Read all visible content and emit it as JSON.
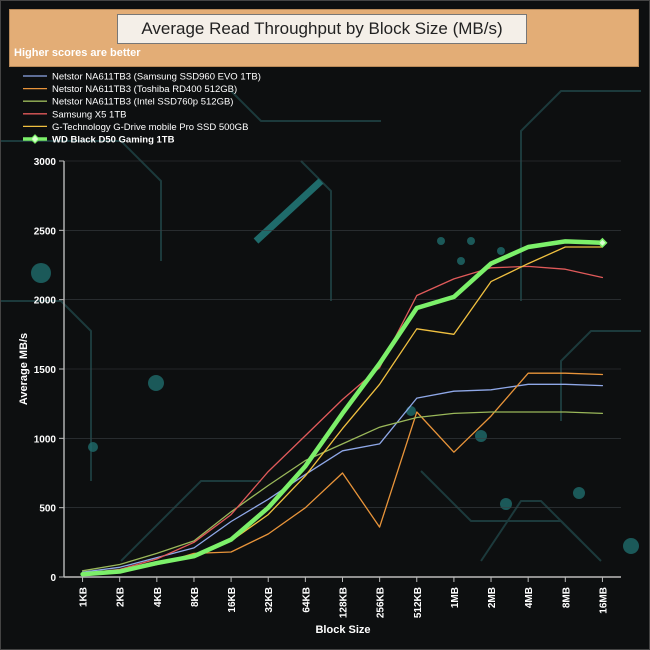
{
  "header": {
    "title": "Average Read Throughput by Block Size (MB/s)",
    "subtitle": "Higher scores are better"
  },
  "chart_data": {
    "type": "line",
    "title": "Average Read Throughput by Block Size (MB/s)",
    "subtitle": "Higher scores are better",
    "xlabel": "Block Size",
    "ylabel": "Average MB/s",
    "ylim": [
      0,
      3000
    ],
    "yticks": [
      0,
      500,
      1000,
      1500,
      2000,
      2500,
      3000
    ],
    "categories": [
      "1KB",
      "2KB",
      "4KB",
      "8KB",
      "16KB",
      "32KB",
      "64KB",
      "128KB",
      "256KB",
      "512KB",
      "1MB",
      "2MB",
      "4MB",
      "8MB",
      "16MB"
    ],
    "legend_position": "top-left",
    "series": [
      {
        "name": "Netstor NA611TB3 (Samsung SSD960 EVO 1TB)",
        "color": "#8fa8e8",
        "values": [
          35,
          70,
          140,
          210,
          400,
          560,
          740,
          910,
          960,
          1290,
          1340,
          1350,
          1390,
          1390,
          1380
        ]
      },
      {
        "name": "Netstor NA611TB3 (Toshiba RD400 512GB)",
        "color": "#e8943a",
        "values": [
          20,
          45,
          90,
          170,
          180,
          310,
          500,
          750,
          360,
          1190,
          900,
          1160,
          1470,
          1470,
          1460
        ]
      },
      {
        "name": "Netstor NA611TB3 (Intel SSD760p 512GB)",
        "color": "#9ab85a",
        "values": [
          45,
          90,
          170,
          260,
          470,
          660,
          840,
          960,
          1080,
          1150,
          1180,
          1190,
          1190,
          1190,
          1180
        ]
      },
      {
        "name": "Samsung X5 1TB",
        "color": "#e05a5a",
        "values": [
          25,
          55,
          130,
          250,
          450,
          760,
          1020,
          1280,
          1510,
          2030,
          2150,
          2230,
          2240,
          2220,
          2160
        ]
      },
      {
        "name": "G-Technology G-Drive mobile Pro SSD 500GB",
        "color": "#f0c040",
        "values": [
          15,
          35,
          90,
          150,
          260,
          450,
          730,
          1070,
          1390,
          1790,
          1750,
          2130,
          2260,
          2380,
          2380
        ]
      },
      {
        "name": "WD Black D50 Gaming 1TB",
        "color": "#7cf06a",
        "values": [
          20,
          40,
          100,
          150,
          270,
          500,
          800,
          1180,
          1540,
          1940,
          2020,
          2260,
          2380,
          2420,
          2410
        ],
        "bold": true
      }
    ]
  }
}
